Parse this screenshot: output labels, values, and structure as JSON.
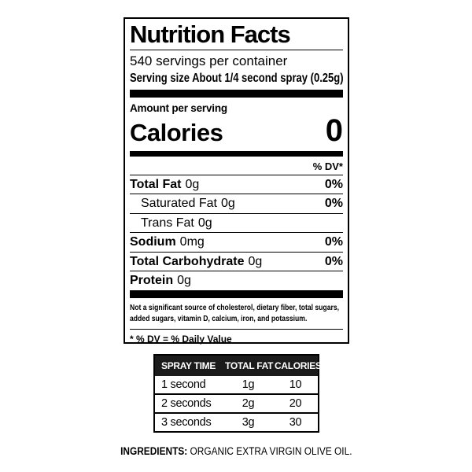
{
  "label": {
    "title": "Nutrition Facts",
    "servings_per_container": "540 servings per container",
    "serving_size_line": "Serving size About 1/4 second spray (0.25g)",
    "amount_per_serving": "Amount per serving",
    "calories_label": "Calories",
    "calories_value": "0",
    "dv_header": "% DV*",
    "rows": [
      {
        "name": "Total Fat",
        "amount": "0g",
        "dv": "0%"
      },
      {
        "name": "Saturated Fat",
        "amount": "0g",
        "dv": "0%"
      },
      {
        "name": "Trans Fat",
        "amount": "0g",
        "dv": ""
      },
      {
        "name": "Sodium",
        "amount": "0mg",
        "dv": "0%"
      },
      {
        "name": "Total Carbohydrate",
        "amount": "0g",
        "dv": "0%"
      },
      {
        "name": "Protein",
        "amount": "0g",
        "dv": ""
      }
    ],
    "footnote": "Not a significant source of cholesterol, dietary fiber, total sugars, added sugars, vitamin D, calcium, iron, and potassium.",
    "dv_definition": "* % DV = % Daily Value"
  },
  "spray_table": {
    "headers": [
      "SPRAY TIME",
      "TOTAL FAT",
      "CALORIES"
    ],
    "rows": [
      {
        "time": "1 second",
        "fat": "1g",
        "calories": "10"
      },
      {
        "time": "2 seconds",
        "fat": "2g",
        "calories": "20"
      },
      {
        "time": "3 seconds",
        "fat": "3g",
        "calories": "30"
      }
    ]
  },
  "ingredients": {
    "label": "INGREDIENTS:",
    "value": "ORGANIC EXTRA VIRGIN OLIVE OIL."
  },
  "colors": {
    "ink": "#000000",
    "paper": "#ffffff",
    "table_header_bg": "#1b1b1b",
    "table_header_text": "#ffffff"
  }
}
